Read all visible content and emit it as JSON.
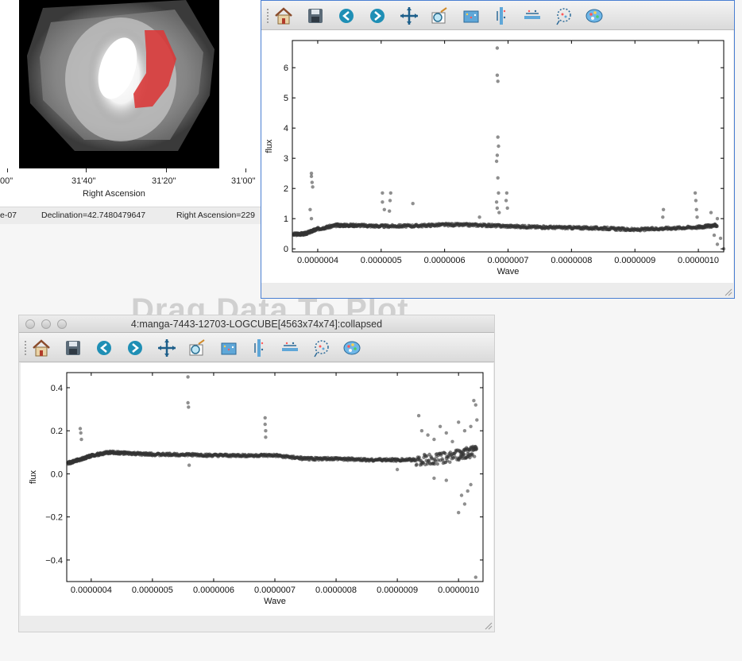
{
  "image_window": {
    "ra_ticks": [
      "00\"",
      "31'40\"",
      "31'20\"",
      "31'00\""
    ],
    "ra_axis_label": "Right Ascension",
    "status": {
      "left_fragment": "e-07",
      "declination": "Declination=42.7480479647",
      "right_ascension": "Right Ascension=229"
    },
    "colors": {
      "background": "#000000",
      "selection": "#d93a3a"
    }
  },
  "drag_hint": "Drag Data To Plot",
  "toolbar_icons": [
    "home-icon",
    "save-icon",
    "back-arrow-icon",
    "forward-arrow-icon",
    "pan-icon",
    "zoom-icon",
    "configure-subplots-icon",
    "vertical-bars-icon",
    "horizontal-bars-icon",
    "lasso-icon",
    "palette-icon"
  ],
  "plot_top": {
    "title": ""
  },
  "plot_bottom": {
    "title": "4:manga-7443-12703-LOGCUBE[4563x74x74]:collapsed"
  },
  "chart_data": [
    {
      "type": "scatter",
      "title": "",
      "xlabel": "Wave",
      "ylabel": "flux",
      "xlim": [
        3.6e-07,
        1.04e-06
      ],
      "ylim": [
        -0.1,
        6.9
      ],
      "x_ticks": [
        4e-07,
        5e-07,
        6e-07,
        7e-07,
        8e-07,
        9e-07,
        1e-06
      ],
      "x_tick_labels": [
        "0.0000004",
        "0.0000005",
        "0.0000006",
        "0.0000007",
        "0.0000008",
        "0.0000009",
        "0.0000010"
      ],
      "y_ticks": [
        0,
        1,
        2,
        3,
        4,
        5,
        6
      ],
      "y_tick_labels": [
        "0",
        "1",
        "2",
        "3",
        "4",
        "5",
        "6"
      ],
      "marker_color": "#333333",
      "continuum": [
        [
          3.62e-07,
          0.48
        ],
        [
          3.8e-07,
          0.5
        ],
        [
          4e-07,
          0.66
        ],
        [
          4.3e-07,
          0.78
        ],
        [
          4.6e-07,
          0.78
        ],
        [
          5e-07,
          0.75
        ],
        [
          5.5e-07,
          0.76
        ],
        [
          6e-07,
          0.8
        ],
        [
          6.5e-07,
          0.79
        ],
        [
          7e-07,
          0.75
        ],
        [
          7.5e-07,
          0.72
        ],
        [
          8e-07,
          0.7
        ],
        [
          8.5e-07,
          0.68
        ],
        [
          9e-07,
          0.63
        ],
        [
          9.5e-07,
          0.68
        ],
        [
          1e-06,
          0.72
        ],
        [
          1.03e-06,
          0.78
        ]
      ],
      "outliers": [
        [
          3.9e-07,
          2.5
        ],
        [
          3.9e-07,
          2.4
        ],
        [
          3.91e-07,
          2.2
        ],
        [
          3.92e-07,
          2.05
        ],
        [
          3.88e-07,
          1.3
        ],
        [
          3.9e-07,
          1.0
        ],
        [
          5.02e-07,
          1.85
        ],
        [
          5.02e-07,
          1.55
        ],
        [
          5.05e-07,
          1.3
        ],
        [
          5.15e-07,
          1.85
        ],
        [
          5.14e-07,
          1.6
        ],
        [
          5.13e-07,
          1.25
        ],
        [
          5.5e-07,
          1.5
        ],
        [
          6.55e-07,
          1.05
        ],
        [
          6.83e-07,
          6.65
        ],
        [
          6.83e-07,
          5.75
        ],
        [
          6.84e-07,
          5.55
        ],
        [
          6.84e-07,
          3.7
        ],
        [
          6.85e-07,
          3.4
        ],
        [
          6.83e-07,
          3.1
        ],
        [
          6.82e-07,
          2.9
        ],
        [
          6.84e-07,
          2.35
        ],
        [
          6.85e-07,
          1.85
        ],
        [
          6.82e-07,
          1.55
        ],
        [
          6.83e-07,
          1.35
        ],
        [
          6.86e-07,
          1.2
        ],
        [
          6.98e-07,
          1.85
        ],
        [
          6.97e-07,
          1.6
        ],
        [
          6.99e-07,
          1.35
        ],
        [
          9.45e-07,
          1.3
        ],
        [
          9.44e-07,
          1.05
        ],
        [
          9.95e-07,
          1.85
        ],
        [
          9.96e-07,
          1.6
        ],
        [
          9.97e-07,
          1.3
        ],
        [
          9.98e-07,
          1.05
        ],
        [
          1.02e-06,
          1.2
        ],
        [
          1.03e-06,
          1.0
        ],
        [
          1.035e-06,
          0.35
        ],
        [
          1.04e-06,
          0.0
        ],
        [
          1.03e-06,
          0.15
        ],
        [
          1.025e-06,
          0.45
        ]
      ]
    },
    {
      "type": "scatter",
      "title": "4:manga-7443-12703-LOGCUBE[4563x74x74]:collapsed",
      "xlabel": "Wave",
      "ylabel": "flux",
      "xlim": [
        3.6e-07,
        1.04e-06
      ],
      "ylim": [
        -0.5,
        0.47
      ],
      "x_ticks": [
        4e-07,
        5e-07,
        6e-07,
        7e-07,
        8e-07,
        9e-07,
        1e-06
      ],
      "x_tick_labels": [
        "0.0000004",
        "0.0000005",
        "0.0000006",
        "0.0000007",
        "0.0000008",
        "0.0000009",
        "0.0000010"
      ],
      "y_ticks": [
        -0.4,
        -0.2,
        0.0,
        0.2,
        0.4
      ],
      "y_tick_labels": [
        "−0.4",
        "−0.2",
        "0.0",
        "0.2",
        "0.4"
      ],
      "marker_color": "#333333",
      "continuum": [
        [
          3.62e-07,
          0.05
        ],
        [
          3.8e-07,
          0.065
        ],
        [
          4e-07,
          0.085
        ],
        [
          4.3e-07,
          0.1
        ],
        [
          4.6e-07,
          0.095
        ],
        [
          5e-07,
          0.09
        ],
        [
          5.5e-07,
          0.09
        ],
        [
          6e-07,
          0.085
        ],
        [
          6.5e-07,
          0.085
        ],
        [
          7e-07,
          0.085
        ],
        [
          7.5e-07,
          0.07
        ],
        [
          8e-07,
          0.07
        ],
        [
          8.5e-07,
          0.065
        ],
        [
          9e-07,
          0.065
        ],
        [
          9.5e-07,
          0.065
        ],
        [
          1e-06,
          0.085
        ],
        [
          1.03e-06,
          0.11
        ]
      ],
      "outliers": [
        [
          3.82e-07,
          0.21
        ],
        [
          3.83e-07,
          0.19
        ],
        [
          3.84e-07,
          0.16
        ],
        [
          5.58e-07,
          0.45
        ],
        [
          5.58e-07,
          0.33
        ],
        [
          5.59e-07,
          0.31
        ],
        [
          5.6e-07,
          0.04
        ],
        [
          6.84e-07,
          0.26
        ],
        [
          6.84e-07,
          0.23
        ],
        [
          6.85e-07,
          0.2
        ],
        [
          6.85e-07,
          0.17
        ],
        [
          9.35e-07,
          0.27
        ],
        [
          9.4e-07,
          0.2
        ],
        [
          9.5e-07,
          0.18
        ],
        [
          9.6e-07,
          0.16
        ],
        [
          9.7e-07,
          0.22
        ],
        [
          9.8e-07,
          0.19
        ],
        [
          9.9e-07,
          0.15
        ],
        [
          1e-06,
          0.24
        ],
        [
          1.01e-06,
          0.2
        ],
        [
          1.02e-06,
          0.22
        ],
        [
          1.025e-06,
          0.34
        ],
        [
          1.028e-06,
          0.32
        ],
        [
          1.03e-06,
          0.25
        ],
        [
          1e-06,
          -0.18
        ],
        [
          1.005e-06,
          -0.1
        ],
        [
          1.01e-06,
          -0.14
        ],
        [
          1.015e-06,
          -0.08
        ],
        [
          1.02e-06,
          -0.05
        ],
        [
          9.6e-07,
          -0.02
        ],
        [
          9.8e-07,
          -0.03
        ],
        [
          9e-07,
          0.02
        ],
        [
          1.028e-06,
          -0.48
        ]
      ]
    }
  ]
}
